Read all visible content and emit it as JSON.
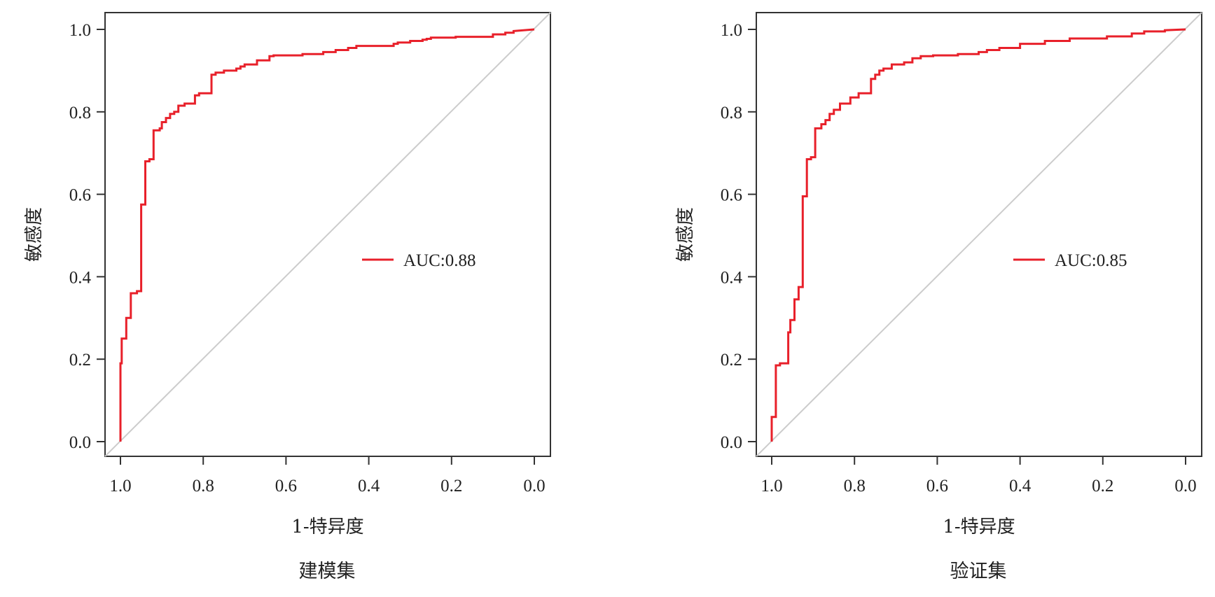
{
  "chart_data": [
    {
      "type": "line",
      "caption": "建模集",
      "xlabel": "1-特异度",
      "ylabel": "敏感度",
      "x_ticks": [
        "1.0",
        "0.8",
        "0.6",
        "0.4",
        "0.2",
        "0.0"
      ],
      "y_ticks": [
        "0.0",
        "0.2",
        "0.4",
        "0.6",
        "0.8",
        "1.0"
      ],
      "x_tick_values": [
        1.0,
        0.8,
        0.6,
        0.4,
        0.2,
        0.0
      ],
      "y_tick_values": [
        0.0,
        0.2,
        0.4,
        0.6,
        0.8,
        1.0
      ],
      "xlim": [
        1.0,
        0.0
      ],
      "ylim": [
        0.0,
        1.0
      ],
      "x_reversed": true,
      "legend_position": "right-center",
      "legend_label": "AUC:0.88",
      "series": [
        {
          "color": "#e8202a",
          "x": [
            1.0,
            1.0,
            0.997,
            0.997,
            0.986,
            0.986,
            0.975,
            0.975,
            0.96,
            0.96,
            0.95,
            0.95,
            0.94,
            0.94,
            0.93,
            0.93,
            0.92,
            0.92,
            0.905,
            0.905,
            0.9,
            0.9,
            0.89,
            0.89,
            0.88,
            0.88,
            0.87,
            0.87,
            0.86,
            0.86,
            0.845,
            0.845,
            0.82,
            0.82,
            0.81,
            0.81,
            0.78,
            0.78,
            0.77,
            0.77,
            0.75,
            0.75,
            0.72,
            0.72,
            0.71,
            0.71,
            0.7,
            0.7,
            0.67,
            0.67,
            0.64,
            0.64,
            0.63,
            0.63,
            0.56,
            0.56,
            0.51,
            0.51,
            0.48,
            0.48,
            0.45,
            0.45,
            0.43,
            0.43,
            0.34,
            0.34,
            0.33,
            0.33,
            0.3,
            0.3,
            0.27,
            0.27,
            0.26,
            0.26,
            0.25,
            0.25,
            0.19,
            0.19,
            0.1,
            0.1,
            0.07,
            0.07,
            0.05,
            0.05,
            0.0
          ],
          "y": [
            0.0,
            0.19,
            0.19,
            0.25,
            0.25,
            0.3,
            0.3,
            0.36,
            0.36,
            0.365,
            0.365,
            0.575,
            0.575,
            0.68,
            0.68,
            0.685,
            0.685,
            0.755,
            0.755,
            0.76,
            0.76,
            0.775,
            0.775,
            0.785,
            0.785,
            0.795,
            0.795,
            0.8,
            0.8,
            0.815,
            0.815,
            0.82,
            0.82,
            0.84,
            0.84,
            0.845,
            0.845,
            0.89,
            0.89,
            0.895,
            0.895,
            0.9,
            0.9,
            0.905,
            0.905,
            0.91,
            0.91,
            0.915,
            0.915,
            0.925,
            0.925,
            0.935,
            0.935,
            0.937,
            0.937,
            0.94,
            0.94,
            0.945,
            0.945,
            0.95,
            0.95,
            0.955,
            0.955,
            0.96,
            0.96,
            0.965,
            0.965,
            0.968,
            0.968,
            0.972,
            0.972,
            0.975,
            0.975,
            0.977,
            0.977,
            0.98,
            0.98,
            0.982,
            0.982,
            0.988,
            0.988,
            0.992,
            0.992,
            0.996,
            1.0
          ]
        }
      ],
      "diagonal_color": "#cccccc"
    },
    {
      "type": "line",
      "caption": "验证集",
      "xlabel": "1-特异度",
      "ylabel": "敏感度",
      "x_ticks": [
        "1.0",
        "0.8",
        "0.6",
        "0.4",
        "0.2",
        "0.0"
      ],
      "y_ticks": [
        "0.0",
        "0.2",
        "0.4",
        "0.6",
        "0.8",
        "1.0"
      ],
      "x_tick_values": [
        1.0,
        0.8,
        0.6,
        0.4,
        0.2,
        0.0
      ],
      "y_tick_values": [
        0.0,
        0.2,
        0.4,
        0.6,
        0.8,
        1.0
      ],
      "xlim": [
        1.0,
        0.0
      ],
      "ylim": [
        0.0,
        1.0
      ],
      "x_reversed": true,
      "legend_position": "right-center",
      "legend_label": "AUC:0.85",
      "series": [
        {
          "color": "#e8202a",
          "x": [
            1.0,
            1.0,
            0.99,
            0.99,
            0.98,
            0.98,
            0.96,
            0.96,
            0.955,
            0.955,
            0.945,
            0.945,
            0.935,
            0.935,
            0.925,
            0.925,
            0.915,
            0.915,
            0.905,
            0.905,
            0.895,
            0.895,
            0.88,
            0.88,
            0.87,
            0.87,
            0.86,
            0.86,
            0.85,
            0.85,
            0.835,
            0.835,
            0.81,
            0.81,
            0.79,
            0.79,
            0.76,
            0.76,
            0.75,
            0.75,
            0.74,
            0.74,
            0.73,
            0.73,
            0.71,
            0.71,
            0.68,
            0.68,
            0.66,
            0.66,
            0.64,
            0.64,
            0.61,
            0.61,
            0.55,
            0.55,
            0.5,
            0.5,
            0.48,
            0.48,
            0.45,
            0.45,
            0.4,
            0.4,
            0.34,
            0.34,
            0.28,
            0.28,
            0.19,
            0.19,
            0.13,
            0.13,
            0.1,
            0.1,
            0.05,
            0.05,
            0.0
          ],
          "y": [
            0.0,
            0.06,
            0.06,
            0.185,
            0.185,
            0.19,
            0.19,
            0.265,
            0.265,
            0.295,
            0.295,
            0.345,
            0.345,
            0.375,
            0.375,
            0.595,
            0.595,
            0.685,
            0.685,
            0.69,
            0.69,
            0.76,
            0.76,
            0.77,
            0.77,
            0.78,
            0.78,
            0.795,
            0.795,
            0.805,
            0.805,
            0.82,
            0.82,
            0.835,
            0.835,
            0.845,
            0.845,
            0.88,
            0.88,
            0.89,
            0.89,
            0.9,
            0.9,
            0.905,
            0.905,
            0.915,
            0.915,
            0.92,
            0.92,
            0.93,
            0.93,
            0.935,
            0.935,
            0.937,
            0.937,
            0.94,
            0.94,
            0.945,
            0.945,
            0.95,
            0.95,
            0.955,
            0.955,
            0.965,
            0.965,
            0.972,
            0.972,
            0.978,
            0.978,
            0.983,
            0.983,
            0.99,
            0.99,
            0.995,
            0.995,
            0.998,
            1.0
          ]
        }
      ],
      "diagonal_color": "#cccccc"
    }
  ]
}
